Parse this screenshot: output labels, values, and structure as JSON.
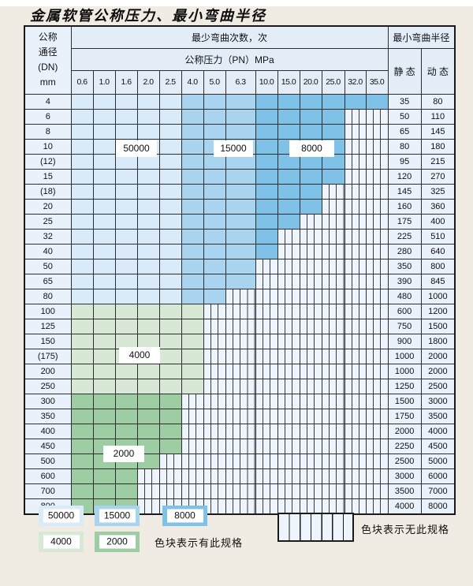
{
  "page": {
    "title": "金属软管公称压力、最小弯曲半径"
  },
  "colors": {
    "c50000": "#d9eaf8",
    "c15000": "#a9d4ef",
    "c8000": "#7fc1e7",
    "c4000": "#d7e9d5",
    "c2000": "#9fcda3",
    "nospec_bg": "#eef4fb",
    "header_bg": "#e3edf8",
    "label_cell_bg": "#e9f2fa",
    "grid": "#2e2e2e",
    "page_bg": "#f0ebe3"
  },
  "table": {
    "corner": {
      "line1": "公称",
      "line2": "通径",
      "line3": "(DN)",
      "line4": "mm"
    },
    "header_cycles": "最少弯曲次数，次",
    "header_pressure": "公称压力（PN）MPa",
    "header_radius": "最小弯曲半径",
    "header_static": "静 态",
    "header_dynamic": "动 态",
    "pressure_columns": [
      "0.6",
      "1.0",
      "1.6",
      "2.0",
      "2.5",
      "4.0",
      "5.0",
      "6.3",
      "10.0",
      "15.0",
      "20.0",
      "25.0",
      "32.0",
      "35.0"
    ]
  },
  "zone_labels": {
    "l50000": "50000",
    "l15000": "15000",
    "l8000": "8000",
    "l4000": "4000",
    "l2000": "2000"
  },
  "legend": {
    "items": [
      {
        "value": "50000",
        "color_key": "c50000"
      },
      {
        "value": "15000",
        "color_key": "c15000"
      },
      {
        "value": "8000",
        "color_key": "c8000"
      },
      {
        "value": "4000",
        "color_key": "c4000"
      },
      {
        "value": "2000",
        "color_key": "c2000"
      }
    ],
    "has_spec_text": "色块表示有此规格",
    "no_spec_text": "色块表示无此规格"
  },
  "chart_data": {
    "type": "table",
    "title": "金属软管公称压力、最小弯曲半径",
    "columns": [
      "公称通径(DN) mm",
      "0.6",
      "1.0",
      "1.6",
      "2.0",
      "2.5",
      "4.0",
      "5.0",
      "6.3",
      "10.0",
      "15.0",
      "20.0",
      "25.0",
      "32.0",
      "35.0",
      "静态",
      "动态"
    ],
    "bend_cycle_zones": {
      "50000": "蓝色浅, PN 0.6–2.5",
      "15000": "蓝色中浅, PN 4.0–6.3",
      "8000": "蓝色中, PN 10.0–35.0",
      "4000": "绿色浅, DN 100–250",
      "2000": "绿色中, DN 300–800"
    },
    "rows": [
      {
        "dn": "4",
        "zone": "blue",
        "colored_cols": 14,
        "max_pn": "35.0",
        "static": "35",
        "dynamic": "80"
      },
      {
        "dn": "6",
        "zone": "blue",
        "colored_cols": 12,
        "max_pn": "25.0",
        "static": "50",
        "dynamic": "110"
      },
      {
        "dn": "8",
        "zone": "blue",
        "colored_cols": 12,
        "max_pn": "25.0",
        "static": "65",
        "dynamic": "145"
      },
      {
        "dn": "10",
        "zone": "blue",
        "colored_cols": 12,
        "max_pn": "25.0",
        "static": "80",
        "dynamic": "180"
      },
      {
        "dn": "(12)",
        "zone": "blue",
        "colored_cols": 12,
        "max_pn": "25.0",
        "static": "95",
        "dynamic": "215"
      },
      {
        "dn": "15",
        "zone": "blue",
        "colored_cols": 12,
        "max_pn": "25.0",
        "static": "120",
        "dynamic": "270"
      },
      {
        "dn": "(18)",
        "zone": "blue",
        "colored_cols": 11,
        "max_pn": "20.0",
        "static": "145",
        "dynamic": "325"
      },
      {
        "dn": "20",
        "zone": "blue",
        "colored_cols": 11,
        "max_pn": "20.0",
        "static": "160",
        "dynamic": "360"
      },
      {
        "dn": "25",
        "zone": "blue",
        "colored_cols": 10,
        "max_pn": "15.0",
        "static": "175",
        "dynamic": "400"
      },
      {
        "dn": "32",
        "zone": "blue",
        "colored_cols": 9,
        "max_pn": "10.0",
        "static": "225",
        "dynamic": "510"
      },
      {
        "dn": "40",
        "zone": "blue",
        "colored_cols": 9,
        "max_pn": "10.0",
        "static": "280",
        "dynamic": "640"
      },
      {
        "dn": "50",
        "zone": "blue",
        "colored_cols": 8,
        "max_pn": "6.3",
        "static": "350",
        "dynamic": "800"
      },
      {
        "dn": "65",
        "zone": "blue",
        "colored_cols": 8,
        "max_pn": "6.3",
        "static": "390",
        "dynamic": "845"
      },
      {
        "dn": "80",
        "zone": "blue",
        "colored_cols": 7,
        "max_pn": "5.0",
        "static": "480",
        "dynamic": "1000"
      },
      {
        "dn": "100",
        "zone": "green4",
        "colored_cols": 6,
        "max_pn": "4.0",
        "static": "600",
        "dynamic": "1200"
      },
      {
        "dn": "125",
        "zone": "green4",
        "colored_cols": 6,
        "max_pn": "4.0",
        "static": "750",
        "dynamic": "1500"
      },
      {
        "dn": "150",
        "zone": "green4",
        "colored_cols": 6,
        "max_pn": "4.0",
        "static": "900",
        "dynamic": "1800"
      },
      {
        "dn": "(175)",
        "zone": "green4",
        "colored_cols": 6,
        "max_pn": "4.0",
        "static": "1000",
        "dynamic": "2000"
      },
      {
        "dn": "200",
        "zone": "green4",
        "colored_cols": 6,
        "max_pn": "4.0",
        "static": "1000",
        "dynamic": "2000"
      },
      {
        "dn": "250",
        "zone": "green4",
        "colored_cols": 6,
        "max_pn": "4.0",
        "static": "1250",
        "dynamic": "2500"
      },
      {
        "dn": "300",
        "zone": "green2",
        "colored_cols": 5,
        "max_pn": "2.5",
        "static": "1500",
        "dynamic": "3000"
      },
      {
        "dn": "350",
        "zone": "green2",
        "colored_cols": 5,
        "max_pn": "2.5",
        "static": "1750",
        "dynamic": "3500"
      },
      {
        "dn": "400",
        "zone": "green2",
        "colored_cols": 5,
        "max_pn": "2.5",
        "static": "2000",
        "dynamic": "4000"
      },
      {
        "dn": "450",
        "zone": "green2",
        "colored_cols": 5,
        "max_pn": "2.5",
        "static": "2250",
        "dynamic": "4500"
      },
      {
        "dn": "500",
        "zone": "green2",
        "colored_cols": 4,
        "max_pn": "2.0",
        "static": "2500",
        "dynamic": "5000"
      },
      {
        "dn": "600",
        "zone": "green2",
        "colored_cols": 3,
        "max_pn": "1.6",
        "static": "3000",
        "dynamic": "6000"
      },
      {
        "dn": "700",
        "zone": "green2",
        "colored_cols": 3,
        "max_pn": "1.6",
        "static": "3500",
        "dynamic": "7000"
      },
      {
        "dn": "800",
        "zone": "green2",
        "colored_cols": 3,
        "max_pn": "1.6",
        "static": "4000",
        "dynamic": "8000"
      }
    ]
  }
}
